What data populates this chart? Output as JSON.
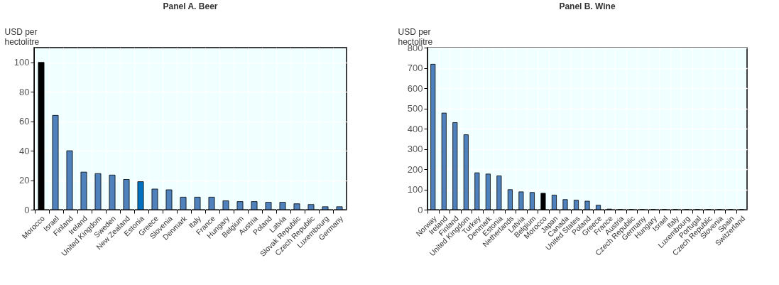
{
  "chart_data": [
    {
      "type": "bar",
      "title": "Panel A. Beer",
      "ylabel": "USD per hectolitre",
      "categories": [
        "Morocco",
        "Israel",
        "Finland",
        "Ireland",
        "United Kingdom",
        "Sweden",
        "New Zealand",
        "Estonia",
        "Greece",
        "Slovenia",
        "Denmark",
        "Italy",
        "France",
        "Hungary",
        "Belgium",
        "Austria",
        "Poland",
        "Latvia",
        "Slovak Republic",
        "Czech Republic",
        "Luxembourg",
        "Germany"
      ],
      "values": [
        100,
        64,
        40,
        25.5,
        24.5,
        23.5,
        20.5,
        19,
        14,
        13.5,
        8.5,
        8.5,
        8.5,
        6,
        5.5,
        5.5,
        5,
        5,
        4,
        3.5,
        2,
        2
      ],
      "colors": [
        "#000000",
        "#4f81bd",
        "#4f81bd",
        "#4f81bd",
        "#4f81bd",
        "#4f81bd",
        "#4f81bd",
        "#0070c0",
        "#4f81bd",
        "#4f81bd",
        "#4f81bd",
        "#4f81bd",
        "#4f81bd",
        "#4f81bd",
        "#4f81bd",
        "#4f81bd",
        "#4f81bd",
        "#4f81bd",
        "#4f81bd",
        "#4f81bd",
        "#4f81bd",
        "#4f81bd"
      ],
      "ylim": [
        0,
        110
      ],
      "yticks": [
        0,
        20,
        40,
        60,
        80,
        100
      ],
      "grid": true
    },
    {
      "type": "bar",
      "title": "Panel B. Wine",
      "ylabel": "USD per hectolitre",
      "categories": [
        "Norway",
        "Ireland",
        "Finland",
        "United Kingdom",
        "Turkey",
        "Denmark",
        "Estonia",
        "Netherlands",
        "Latvia",
        "Belgium",
        "Morocco",
        "Japan",
        "Canada",
        "United States",
        "Poland",
        "Greece",
        "France",
        "Austria",
        "Czech Republic",
        "Germany",
        "Hungary",
        "Israel",
        "Italy",
        "Luxembourg",
        "Portugal",
        "Czech Republic",
        "Slovenia",
        "Spain",
        "Switzerland"
      ],
      "values": [
        718,
        477,
        430,
        370,
        182,
        176,
        167,
        99,
        88,
        85,
        81,
        72,
        50,
        47,
        42,
        22,
        3,
        0,
        0,
        0,
        0,
        0,
        0,
        0,
        0,
        0,
        0,
        0,
        0
      ],
      "colors": [
        "#4f81bd",
        "#4f81bd",
        "#4f81bd",
        "#4f81bd",
        "#4f81bd",
        "#4f81bd",
        "#4f81bd",
        "#4f81bd",
        "#4f81bd",
        "#4f81bd",
        "#000000",
        "#4f81bd",
        "#4f81bd",
        "#4f81bd",
        "#4f81bd",
        "#4f81bd",
        "#4f81bd",
        "#4f81bd",
        "#4f81bd",
        "#4f81bd",
        "#4f81bd",
        "#4f81bd",
        "#4f81bd",
        "#4f81bd",
        "#4f81bd",
        "#4f81bd",
        "#4f81bd",
        "#4f81bd",
        "#4f81bd"
      ],
      "ylim": [
        0,
        800
      ],
      "yticks": [
        0,
        100,
        200,
        300,
        400,
        500,
        600,
        700,
        800
      ],
      "grid": true
    }
  ]
}
